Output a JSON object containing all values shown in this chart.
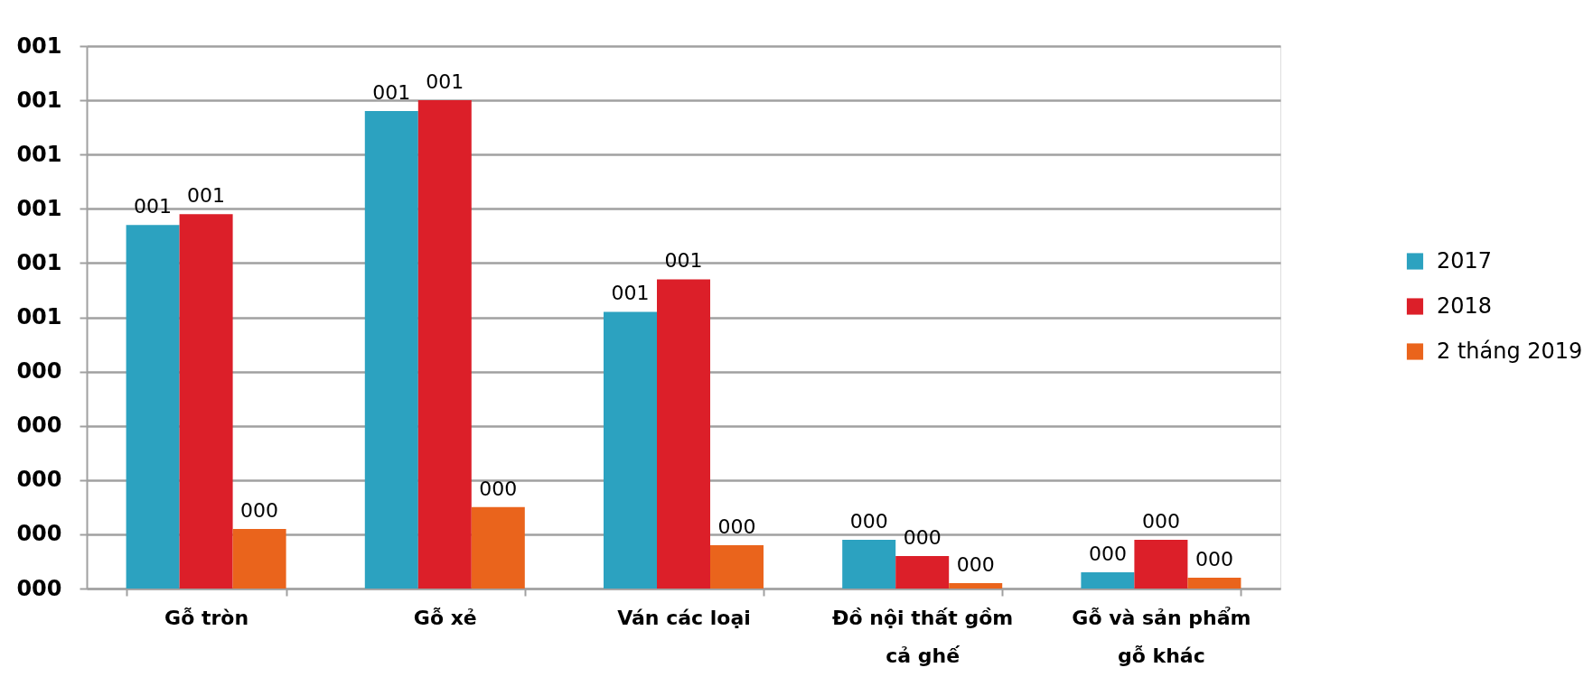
{
  "chart_data": {
    "type": "bar",
    "categories": [
      "Gỗ tròn",
      "Gỗ xẻ",
      "Ván các loại",
      "Đồ nội thất gồm cả ghế",
      "Gỗ và sản phẩm gỗ khác"
    ],
    "series": [
      {
        "name": "2017",
        "color": "#2ca2c0",
        "values": [
          0.67,
          0.88,
          0.51,
          0.09,
          0.03
        ],
        "value_labels": [
          "001",
          "001",
          "001",
          "000",
          "000"
        ]
      },
      {
        "name": "2018",
        "color": "#dc1f29",
        "values": [
          0.69,
          0.9,
          0.57,
          0.06,
          0.09
        ],
        "value_labels": [
          "001",
          "001",
          "001",
          "000",
          "000"
        ]
      },
      {
        "name": "2 tháng 2019",
        "color": "#ea641c",
        "values": [
          0.11,
          0.15,
          0.08,
          0.01,
          0.02
        ],
        "value_labels": [
          "000",
          "000",
          "000",
          "000",
          "000"
        ]
      }
    ],
    "ylim": [
      0,
      1.0
    ],
    "yticks": [
      {
        "value": 0,
        "label": "000"
      },
      {
        "value": 0.1,
        "label": "000"
      },
      {
        "value": 0.2,
        "label": "000"
      },
      {
        "value": 0.3,
        "label": "000"
      },
      {
        "value": 0.4,
        "label": "000"
      },
      {
        "value": 0.5,
        "label": "001"
      },
      {
        "value": 0.6,
        "label": "001"
      },
      {
        "value": 0.7,
        "label": "001"
      },
      {
        "value": 0.8,
        "label": "001"
      },
      {
        "value": 0.9,
        "label": "001"
      },
      {
        "value": 1.0,
        "label": "001"
      }
    ],
    "grid": "y",
    "legend": "right"
  }
}
